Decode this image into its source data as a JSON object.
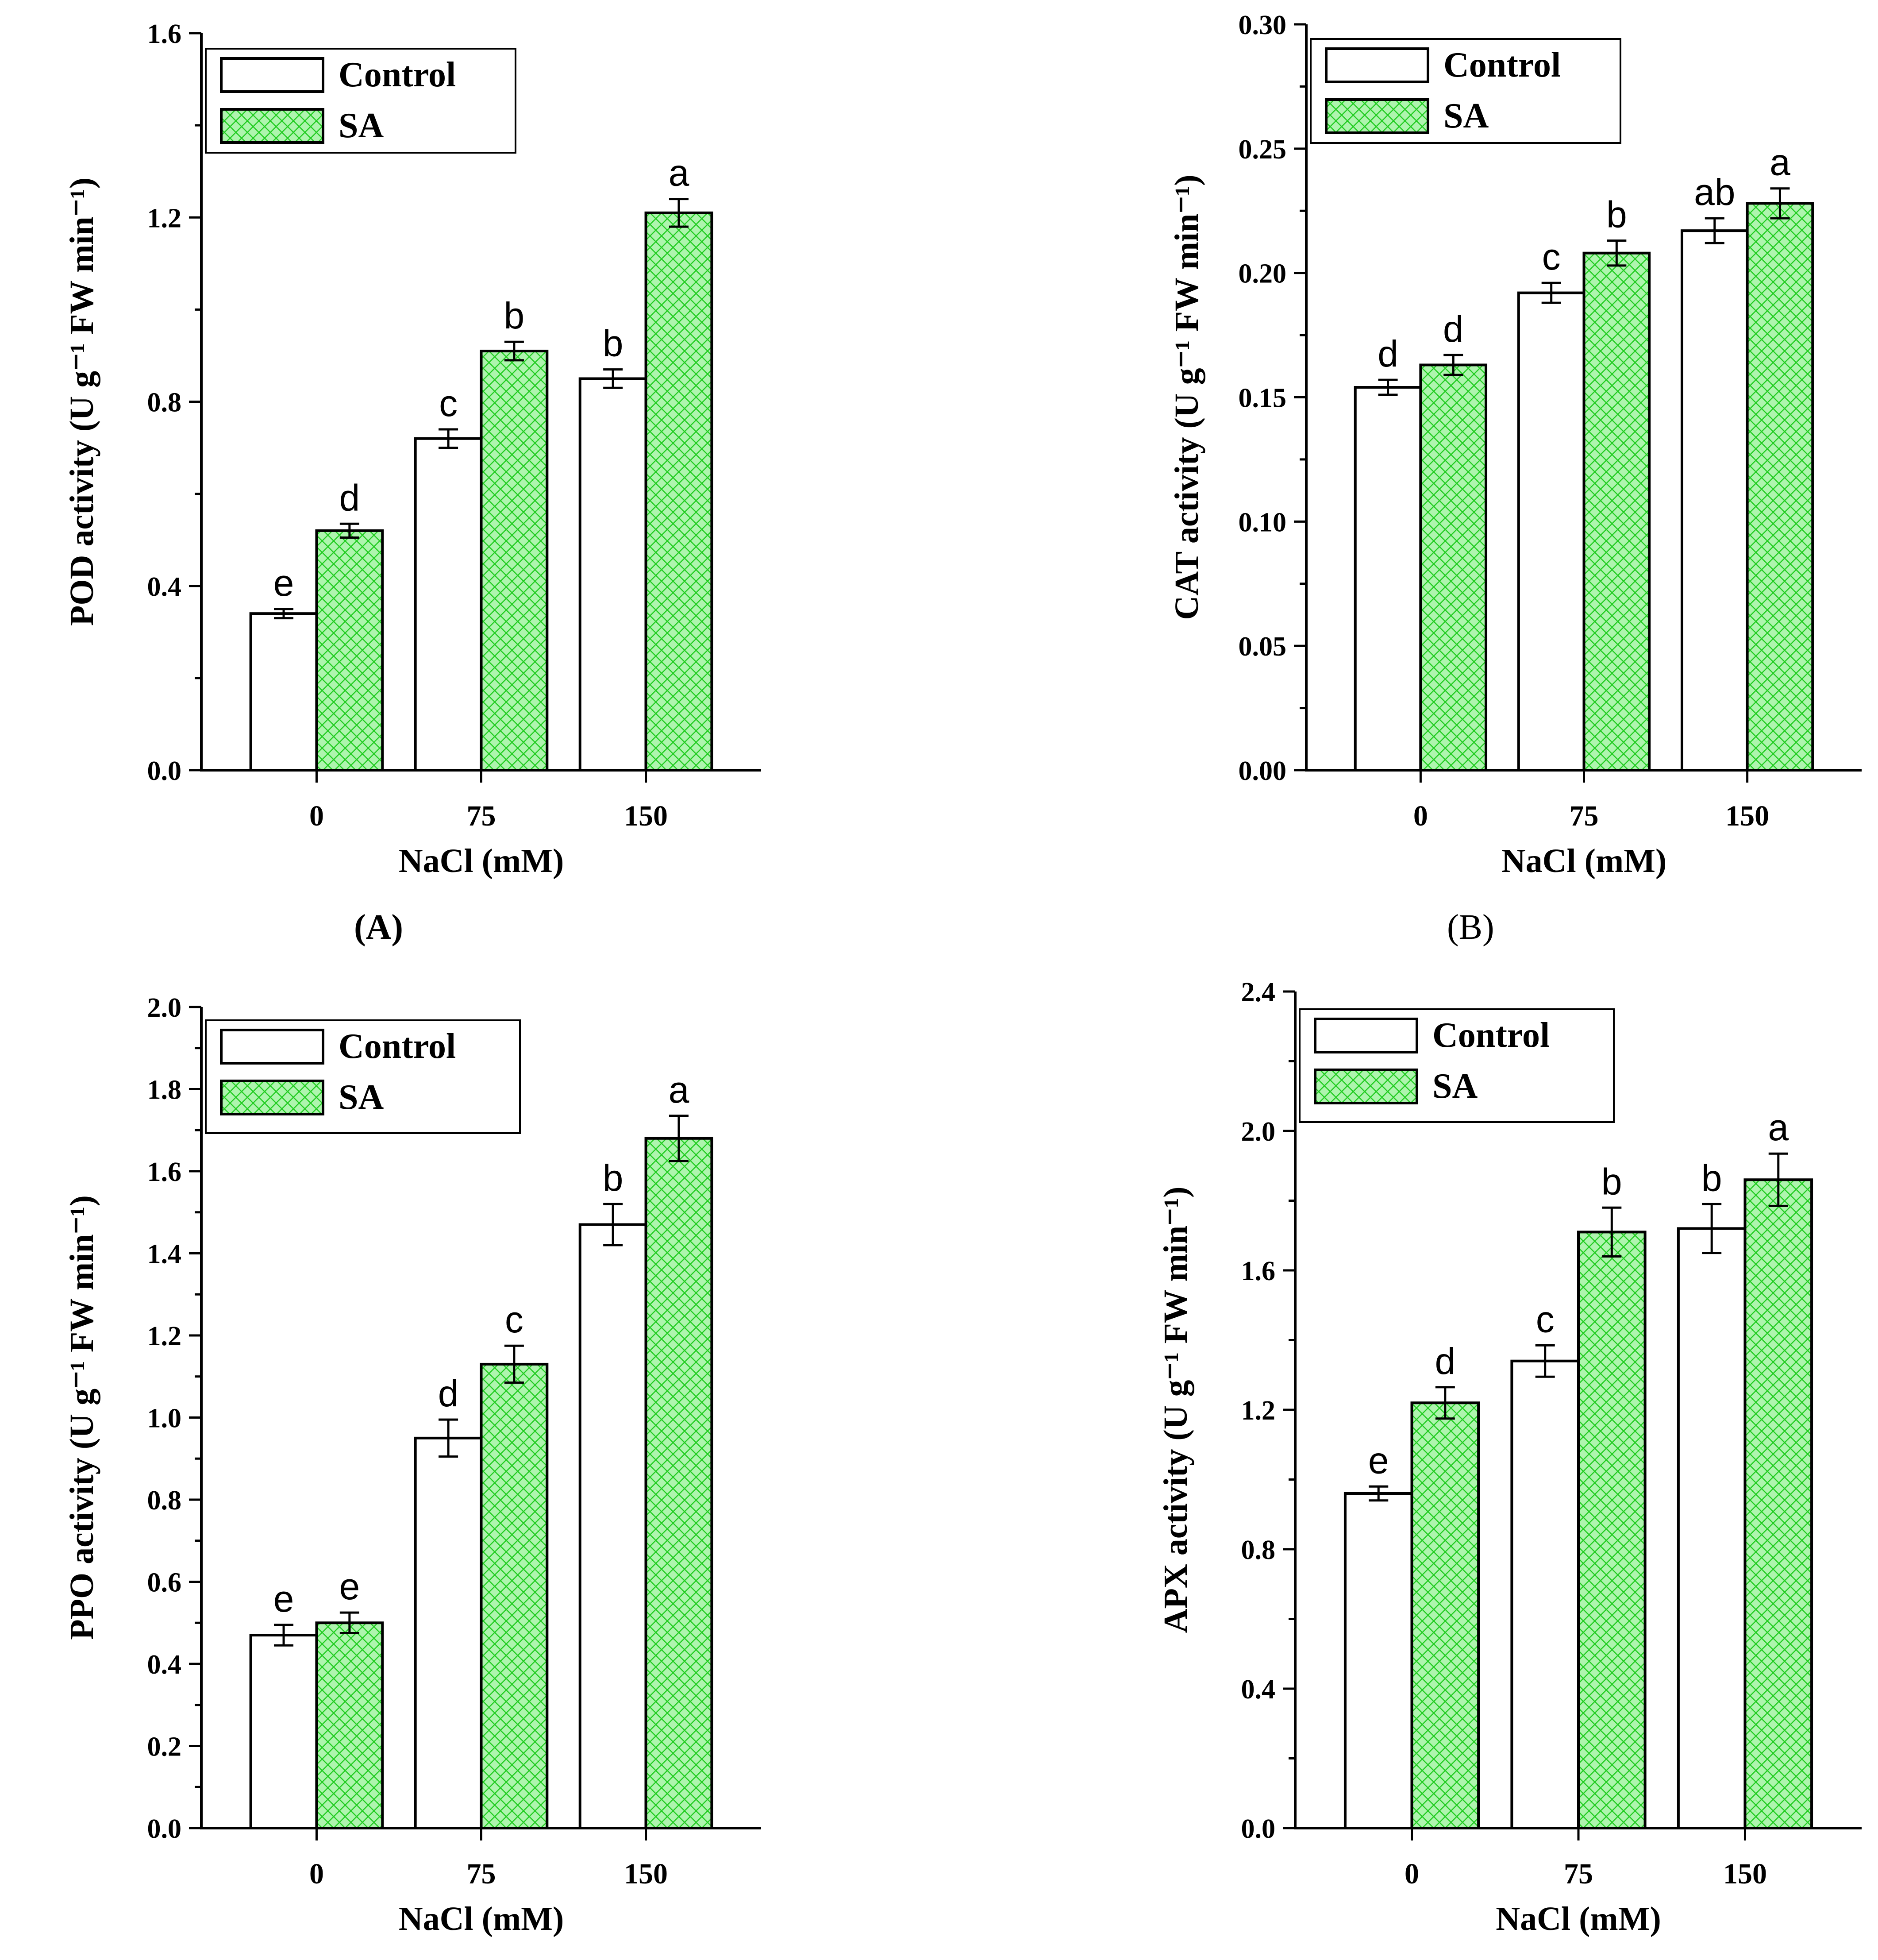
{
  "colors": {
    "control_fill": "#ffffff",
    "sa_fill": "#aef5ae",
    "sa_hatch": "#22cc22",
    "axis": "#000000"
  },
  "legend": {
    "control": "Control",
    "sa": "SA"
  },
  "panel_labels": {
    "A": "(A)",
    "B": "(B)"
  },
  "chart_data": [
    {
      "id": "A",
      "type": "bar",
      "title": "",
      "xlabel": "NaCl (mM)",
      "ylabel": "POD activity (U g⁻¹ FW min⁻¹)",
      "categories": [
        "0",
        "75",
        "150"
      ],
      "ylim": [
        0,
        1.6
      ],
      "yticks": [
        "0.0",
        "0.4",
        "0.8",
        "1.2",
        "1.6"
      ],
      "series": [
        {
          "name": "Control",
          "values": [
            0.34,
            0.72,
            0.85
          ],
          "errors": [
            0.01,
            0.02,
            0.02
          ],
          "letters": [
            "e",
            "c",
            "b"
          ]
        },
        {
          "name": "SA",
          "values": [
            0.52,
            0.91,
            1.21
          ],
          "errors": [
            0.015,
            0.02,
            0.03
          ],
          "letters": [
            "d",
            "b",
            "a"
          ]
        }
      ]
    },
    {
      "id": "B",
      "type": "bar",
      "title": "",
      "xlabel": "NaCl (mM)",
      "ylabel": "CAT activity (U g⁻¹ FW min⁻¹)",
      "categories": [
        "0",
        "75",
        "150"
      ],
      "ylim": [
        0,
        0.3
      ],
      "yticks": [
        "0.00",
        "0.05",
        "0.10",
        "0.15",
        "0.20",
        "0.25",
        "0.30"
      ],
      "series": [
        {
          "name": "Control",
          "values": [
            0.154,
            0.192,
            0.217
          ],
          "errors": [
            0.003,
            0.004,
            0.005
          ],
          "letters": [
            "d",
            "c",
            "ab"
          ]
        },
        {
          "name": "SA",
          "values": [
            0.163,
            0.208,
            0.228
          ],
          "errors": [
            0.004,
            0.005,
            0.006
          ],
          "letters": [
            "d",
            "b",
            "a"
          ]
        }
      ]
    },
    {
      "id": "C",
      "type": "bar",
      "title": "",
      "xlabel": "NaCl (mM)",
      "ylabel": "PPO activity (U g⁻¹ FW min⁻¹)",
      "categories": [
        "0",
        "75",
        "150"
      ],
      "ylim": [
        0,
        2.0
      ],
      "yticks": [
        "0.0",
        "0.2",
        "0.4",
        "0.6",
        "0.8",
        "1.0",
        "1.2",
        "1.4",
        "1.6",
        "1.8",
        "2.0"
      ],
      "series": [
        {
          "name": "Control",
          "values": [
            0.47,
            0.95,
            1.47
          ],
          "errors": [
            0.025,
            0.045,
            0.05
          ],
          "letters": [
            "e",
            "d",
            "b"
          ]
        },
        {
          "name": "SA",
          "values": [
            0.5,
            1.13,
            1.68
          ],
          "errors": [
            0.025,
            0.045,
            0.055
          ],
          "letters": [
            "e",
            "c",
            "a"
          ]
        }
      ]
    },
    {
      "id": "D",
      "type": "bar",
      "title": "",
      "xlabel": "NaCl (mM)",
      "ylabel": "APX activity (U g⁻¹ FW min⁻¹)",
      "categories": [
        "0",
        "75",
        "150"
      ],
      "ylim": [
        0,
        2.4
      ],
      "yticks": [
        "0.0",
        "0.4",
        "0.8",
        "1.2",
        "1.6",
        "2.0",
        "2.4"
      ],
      "series": [
        {
          "name": "Control",
          "values": [
            0.96,
            1.34,
            1.72
          ],
          "errors": [
            0.02,
            0.045,
            0.07
          ],
          "letters": [
            "e",
            "c",
            "b"
          ]
        },
        {
          "name": "SA",
          "values": [
            1.22,
            1.71,
            1.86
          ],
          "errors": [
            0.045,
            0.07,
            0.075
          ],
          "letters": [
            "d",
            "b",
            "a"
          ]
        }
      ]
    }
  ]
}
